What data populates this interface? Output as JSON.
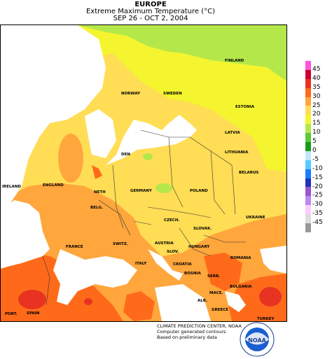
{
  "header": {
    "region": "EUROPE",
    "title": "Extreme Maximum Temperature (°C)",
    "period": "SEP 26  -  OCT  2, 2004"
  },
  "legend": {
    "labels": [
      "45",
      "40",
      "35",
      "30",
      "25",
      "20",
      "15",
      "10",
      "5",
      "0",
      "-5",
      "-10",
      "-15",
      "-20",
      "-25",
      "-30",
      "-35",
      "-45"
    ],
    "colors": [
      "#ff55dd",
      "#cc0033",
      "#e83322",
      "#ff6a1a",
      "#ffa63c",
      "#ffdd55",
      "#f4f52f",
      "#b4e84a",
      "#5cc83c",
      "#1a9a1a",
      "#bde8f8",
      "#55ccff",
      "#1a7dff",
      "#2233bb",
      "#9955cc",
      "#bb88ee",
      "#ffccff",
      "#dddddd",
      "#999999"
    ]
  },
  "map": {
    "countries": [
      {
        "id": "finland",
        "label": "FINLAND"
      },
      {
        "id": "norway",
        "label": "NORWAY"
      },
      {
        "id": "sweden",
        "label": "SWEDEN"
      },
      {
        "id": "estonia",
        "label": "ESTONIA"
      },
      {
        "id": "latvia",
        "label": "LATVIA"
      },
      {
        "id": "lithuania",
        "label": "LITHUANIA"
      },
      {
        "id": "belarus",
        "label": "BELARUS"
      },
      {
        "id": "den",
        "label": "DEN"
      },
      {
        "id": "england",
        "label": "ENGLAND"
      },
      {
        "id": "ireland",
        "label": "IRELAND"
      },
      {
        "id": "neth",
        "label": "NETH"
      },
      {
        "id": "belg",
        "label": "BELG."
      },
      {
        "id": "germany",
        "label": "GERMANY"
      },
      {
        "id": "poland",
        "label": "POLAND"
      },
      {
        "id": "ukraine",
        "label": "UKRAINE"
      },
      {
        "id": "czech",
        "label": "CZECH."
      },
      {
        "id": "slovak",
        "label": "SLOVAK."
      },
      {
        "id": "france",
        "label": "FRANCE"
      },
      {
        "id": "switz",
        "label": "SWITZ."
      },
      {
        "id": "austria",
        "label": "AUSTRIA"
      },
      {
        "id": "hungary",
        "label": "HUNGARY"
      },
      {
        "id": "romania",
        "label": "ROMANIA"
      },
      {
        "id": "italy",
        "label": "ITALY"
      },
      {
        "id": "slov",
        "label": "SLOV."
      },
      {
        "id": "croatia",
        "label": "CROATIA"
      },
      {
        "id": "bosnia",
        "label": "BOSNIA"
      },
      {
        "id": "serb",
        "label": "SERB."
      },
      {
        "id": "bulgaria",
        "label": "BULGARIA"
      },
      {
        "id": "mace",
        "label": "MACE."
      },
      {
        "id": "alb",
        "label": "ALB."
      },
      {
        "id": "greece",
        "label": "GREECE"
      },
      {
        "id": "turkey",
        "label": "TURKEY"
      },
      {
        "id": "port",
        "label": "PORT."
      },
      {
        "id": "spain",
        "label": "SPAIN"
      }
    ]
  },
  "credit": {
    "line1": "CLIMATE PREDICTION CENTER, NOAA",
    "line2": "Computer generated contours",
    "line3": "Based on preliminary data"
  },
  "logo": {
    "text": "NOAA",
    "ring_text": "NATIONAL OCEANIC AND ATMOSPHERIC ADMINISTRATION"
  }
}
